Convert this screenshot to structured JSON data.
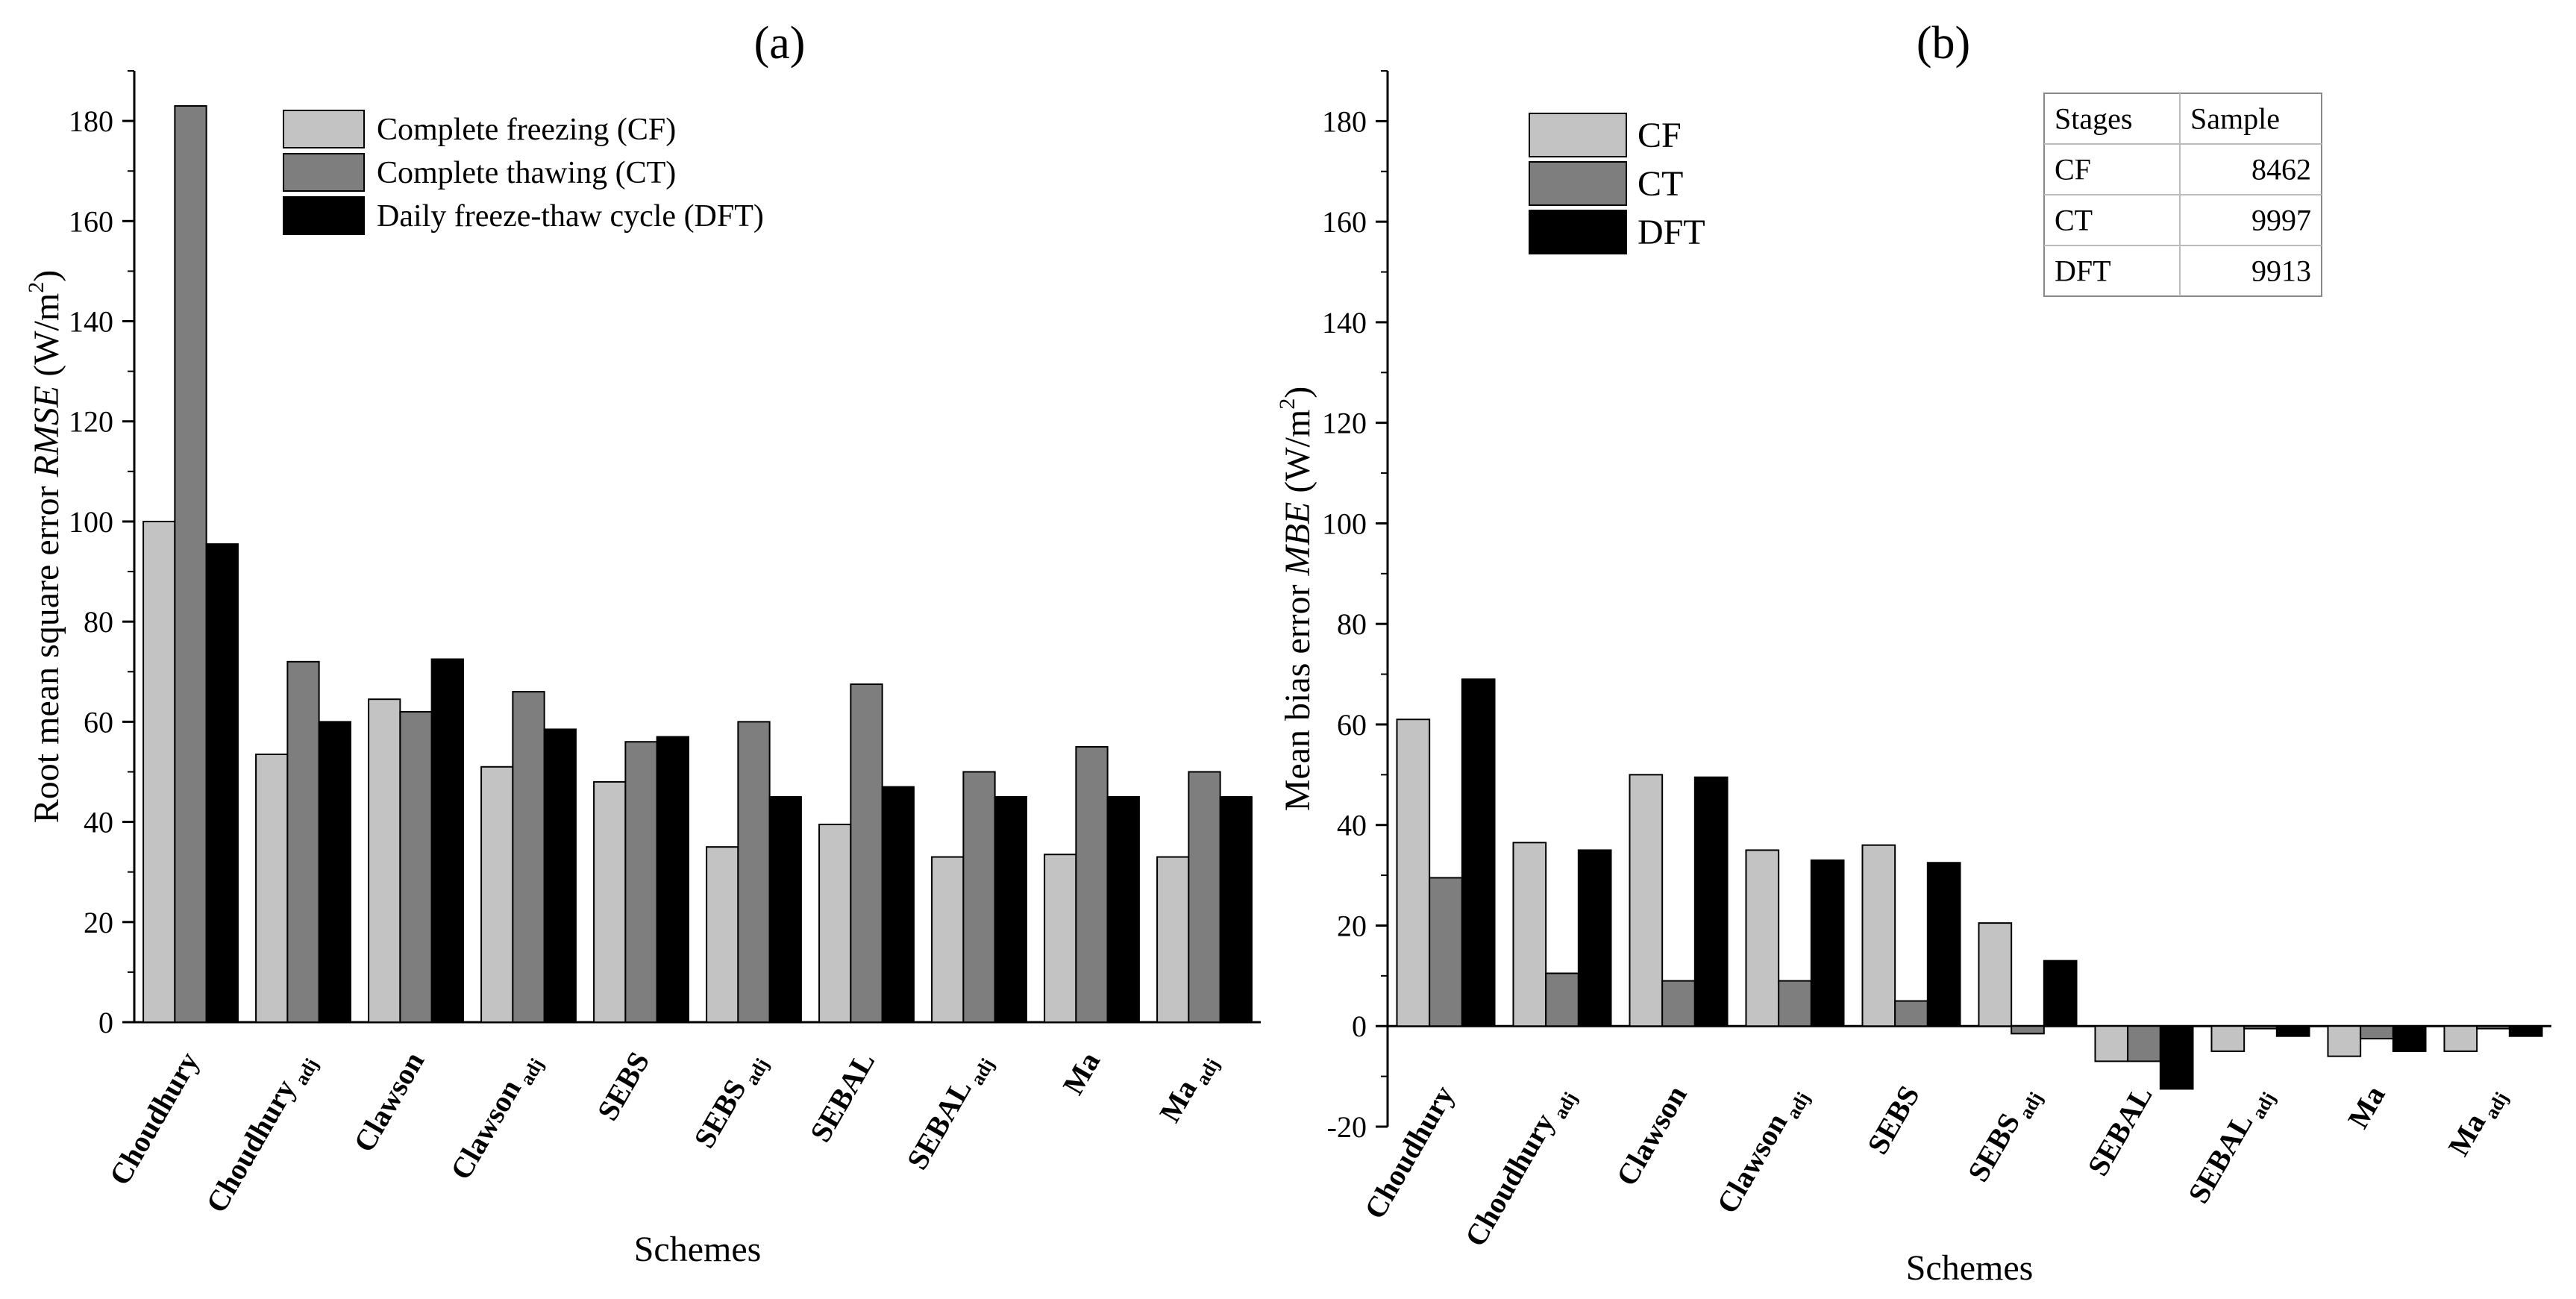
{
  "colors": {
    "CF": "#c3c3c3",
    "CT": "#7e7e7e",
    "DFT": "#000000"
  },
  "chart_data": [
    {
      "type": "bar",
      "panel_label": "(a)",
      "xlabel": "Schemes",
      "ylabel": "Root mean square error RMSE (W/m2)",
      "ylabel_parts": {
        "prefix": "Root mean square error ",
        "italic": "RMSE",
        "unit_open": " (W/m",
        "sup": "2",
        "unit_close": ")"
      },
      "categories": [
        {
          "base": "Choudhury",
          "sub": ""
        },
        {
          "base": "Choudhury",
          "sub": "adj"
        },
        {
          "base": "Clawson",
          "sub": ""
        },
        {
          "base": "Clawson",
          "sub": "adj"
        },
        {
          "base": "SEBS",
          "sub": ""
        },
        {
          "base": "SEBS",
          "sub": "adj"
        },
        {
          "base": "SEBAL",
          "sub": ""
        },
        {
          "base": "SEBAL",
          "sub": "adj"
        },
        {
          "base": "Ma",
          "sub": ""
        },
        {
          "base": "Ma",
          "sub": "adj"
        }
      ],
      "ylim": [
        0,
        190
      ],
      "yticks": [
        0,
        20,
        40,
        60,
        80,
        100,
        120,
        140,
        160,
        180
      ],
      "legend_position": "top-center",
      "series": [
        {
          "key": "CF",
          "name": "Complete freezing (CF)",
          "values": [
            100,
            53.5,
            64.5,
            51,
            48,
            35,
            39.5,
            33,
            33.5,
            33
          ]
        },
        {
          "key": "CT",
          "name": "Complete thawing (CT)",
          "values": [
            183,
            72,
            62,
            66,
            56,
            60,
            67.5,
            50,
            55,
            50
          ]
        },
        {
          "key": "DFT",
          "name": "Daily freeze-thaw cycle (DFT)",
          "values": [
            95.5,
            60,
            72.5,
            58.5,
            57,
            45,
            47,
            45,
            45,
            45
          ]
        }
      ]
    },
    {
      "type": "bar",
      "panel_label": "(b)",
      "xlabel": "Schemes",
      "ylabel": "Mean bias error MBE (W/m2)",
      "ylabel_parts": {
        "prefix": "Mean bias error ",
        "italic": "MBE",
        "unit_open": " (W/m",
        "sup": "2",
        "unit_close": ")"
      },
      "categories": [
        {
          "base": "Choudhury",
          "sub": ""
        },
        {
          "base": "Choudhury",
          "sub": "adj"
        },
        {
          "base": "Clawson",
          "sub": ""
        },
        {
          "base": "Clawson",
          "sub": "adj"
        },
        {
          "base": "SEBS",
          "sub": ""
        },
        {
          "base": "SEBS",
          "sub": "adj"
        },
        {
          "base": "SEBAL",
          "sub": ""
        },
        {
          "base": "SEBAL",
          "sub": "adj"
        },
        {
          "base": "Ma",
          "sub": ""
        },
        {
          "base": "Ma",
          "sub": "adj"
        }
      ],
      "ylim": [
        -20,
        190
      ],
      "yticks": [
        -20,
        0,
        20,
        40,
        60,
        80,
        100,
        120,
        140,
        160,
        180
      ],
      "legend_position": "top-left",
      "series": [
        {
          "key": "CF",
          "name": "CF",
          "values": [
            61,
            36.5,
            50,
            35,
            36,
            20.5,
            -7,
            -5,
            -6,
            -5
          ]
        },
        {
          "key": "CT",
          "name": "CT",
          "values": [
            29.5,
            10.5,
            9,
            9,
            5,
            -1.5,
            -7,
            -0.5,
            -2.5,
            -0.5
          ]
        },
        {
          "key": "DFT",
          "name": "DFT",
          "values": [
            69,
            35,
            49.5,
            33,
            32.5,
            13,
            -12.5,
            -2,
            -5,
            -2
          ]
        }
      ],
      "table": {
        "headers": [
          "Stages",
          "Sample"
        ],
        "rows": [
          [
            "CF",
            "8462"
          ],
          [
            "CT",
            "9997"
          ],
          [
            "DFT",
            "9913"
          ]
        ]
      }
    }
  ]
}
